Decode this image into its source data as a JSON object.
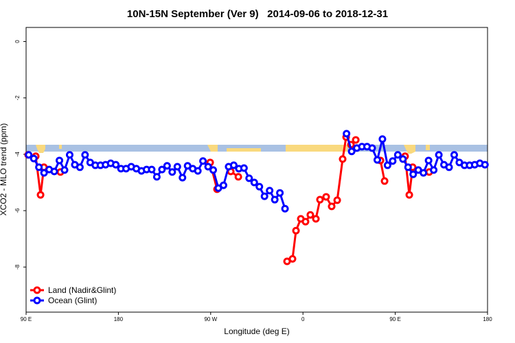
{
  "chart_data": {
    "type": "line",
    "title": "10N-15N September (Ver 9)   2014-09-06 to 2018-12-31",
    "x_label": "Longitude (deg E)",
    "y_label": "XCO2 - MLO trend (ppm)",
    "xlim": [
      90,
      540
    ],
    "ylim": [
      -9.6,
      0.5
    ],
    "xticks": [
      {
        "value": 90,
        "label": "90 E"
      },
      {
        "value": 180,
        "label": "180"
      },
      {
        "value": 270,
        "label": "90 W"
      },
      {
        "value": 360,
        "label": "0"
      },
      {
        "value": 450,
        "label": "90 E"
      },
      {
        "value": 540,
        "label": "180"
      }
    ],
    "yticks": [
      0,
      -2,
      -4,
      -6,
      -8
    ],
    "legend": "bottomleft",
    "series": [
      {
        "name": "Land (Nadir&Glint)",
        "color": "#ff0000",
        "x": [
          92,
          99.4,
          104.1,
          107.4,
          112.5,
          123.5,
          127.5,
          269.5,
          276.2,
          280,
          289.6,
          297,
          302.5,
          344.5,
          349.8,
          353.2,
          357.9,
          362.5,
          367.2,
          372.6,
          376.6,
          382.6,
          388.0,
          393.4,
          398.7,
          402.1,
          406.8,
          411.5,
          415,
          435.6,
          439.6,
          445,
          459.6,
          463.7,
          467,
          475,
          483.1
        ],
        "values": [
          -4.02,
          -4.07,
          -5.44,
          -4.46,
          null,
          -4.63,
          null,
          -4.29,
          -5.24,
          null,
          -4.61,
          -4.8,
          null,
          -7.8,
          -7.71,
          -6.71,
          -6.29,
          -6.39,
          -6.15,
          -6.29,
          -5.61,
          -5.51,
          -5.85,
          -5.63,
          -4.17,
          -3.39,
          -3.66,
          -3.49,
          null,
          -4.22,
          -4.95,
          null,
          -4.07,
          -5.44,
          -4.46,
          null,
          -4.63
        ]
      },
      {
        "name": "Ocean (Glint)",
        "color": "#0000ff",
        "x": [
          92.5,
          97.5,
          102.5,
          107.5,
          112.5,
          117.5,
          122.5,
          127.5,
          132.5,
          137.5,
          142.5,
          147.5,
          152.5,
          157.5,
          162.5,
          167.5,
          172.5,
          177.5,
          182.5,
          187.5,
          192.5,
          197.5,
          202.5,
          207.5,
          212.5,
          217.5,
          222.5,
          227.5,
          232.5,
          237.5,
          242.5,
          247.5,
          252.5,
          257.5,
          262.5,
          267.5,
          272.5,
          277.5,
          282.5,
          287.5,
          292.5,
          297.5,
          302.5,
          307.5,
          312.5,
          317.5,
          322.5,
          327.5,
          332.5,
          337.5,
          342.5,
          347.5,
          402.5,
          407.5,
          412.5,
          417.5,
          422.5,
          427.5,
          432.5,
          437.5,
          442.5,
          447.5,
          452.5,
          457.5,
          462.5,
          467.5,
          472.5,
          477.5,
          482.5,
          487.5,
          492.5,
          497.5,
          502.5,
          507.5,
          512.5,
          517.5,
          522.5,
          527.5,
          532.5,
          537.5
        ],
        "values": [
          -4.02,
          -4.15,
          -4.46,
          -4.66,
          -4.54,
          -4.61,
          -4.22,
          -4.56,
          -4.02,
          -4.37,
          -4.46,
          -4.02,
          -4.29,
          -4.39,
          -4.39,
          -4.37,
          -4.32,
          -4.37,
          -4.51,
          -4.51,
          -4.44,
          -4.51,
          -4.59,
          -4.54,
          -4.54,
          -4.8,
          -4.54,
          -4.41,
          -4.63,
          -4.44,
          -4.83,
          -4.41,
          -4.51,
          -4.59,
          -4.24,
          -4.44,
          -4.56,
          -5.2,
          -5.1,
          -4.44,
          -4.39,
          -4.51,
          -4.49,
          -4.85,
          -5.0,
          -5.15,
          -5.49,
          -5.29,
          -5.61,
          -5.37,
          -5.93,
          null,
          -3.27,
          -3.9,
          -3.78,
          -3.73,
          -3.73,
          -3.78,
          -4.2,
          -3.46,
          -4.39,
          -4.24,
          -4.02,
          -4.17,
          -4.46,
          -4.71,
          -4.56,
          -4.66,
          -4.22,
          -4.56,
          -4.02,
          -4.37,
          -4.46,
          -4.02,
          -4.29,
          -4.39,
          -4.39,
          -4.37,
          -4.32,
          -4.37
        ]
      }
    ]
  }
}
